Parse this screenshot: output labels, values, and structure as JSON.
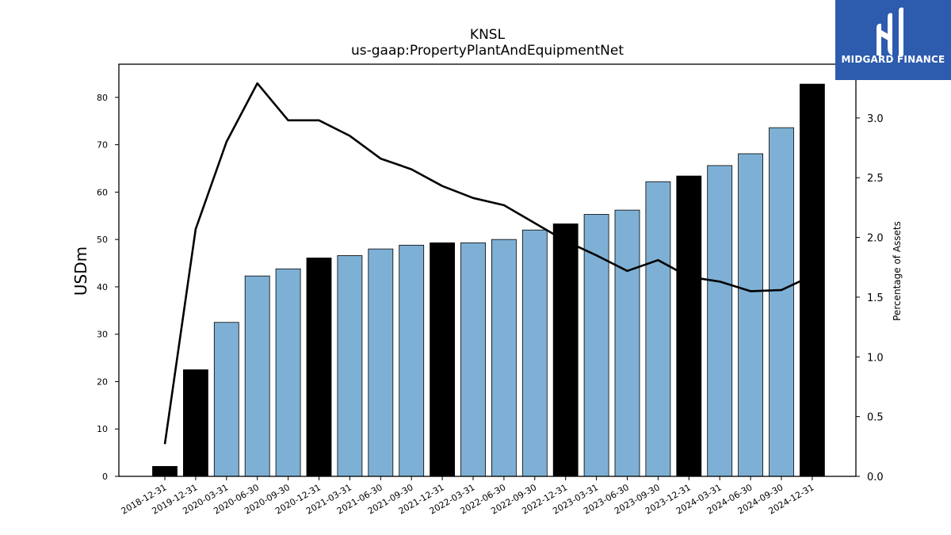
{
  "chart_data": {
    "type": "bar",
    "title": "KNSL",
    "subtitle": "us-gaap:PropertyPlantAndEquipmentNet",
    "ylabel": "USDm",
    "y2label": "Percentage of Assets",
    "ylim": [
      0,
      87
    ],
    "y2lim": [
      0,
      3.45
    ],
    "yticks": [
      0,
      10,
      20,
      30,
      40,
      50,
      60,
      70,
      80
    ],
    "y2ticks": [
      "0.0",
      "0.5",
      "1.0",
      "1.5",
      "2.0",
      "2.5",
      "3.0"
    ],
    "categories": [
      "2018-12-31",
      "2019-12-31",
      "2020-03-31",
      "2020-06-30",
      "2020-09-30",
      "2020-12-31",
      "2021-03-31",
      "2021-06-30",
      "2021-09-30",
      "2021-12-31",
      "2022-03-31",
      "2022-06-30",
      "2022-09-30",
      "2022-12-31",
      "2023-03-31",
      "2023-06-30",
      "2023-09-30",
      "2023-12-31",
      "2024-03-31",
      "2024-06-30",
      "2024-09-30",
      "2024-12-31"
    ],
    "series": [
      {
        "values": [
          2.1,
          22.5,
          32.5,
          42.3,
          43.8,
          46.1,
          46.6,
          48.0,
          48.8,
          49.3,
          49.3,
          50.0,
          52.0,
          53.3,
          55.3,
          56.2,
          62.2,
          63.4,
          65.6,
          68.1,
          73.6,
          82.8
        ],
        "year_end_color": "#000000",
        "quarter_color": "#7eb0d5"
      },
      {
        "axis": "right",
        "values": [
          0.27,
          2.07,
          2.8,
          3.29,
          2.98,
          2.98,
          2.85,
          2.66,
          2.57,
          2.43,
          2.33,
          2.27,
          2.12,
          1.97,
          1.85,
          1.72,
          1.81,
          1.67,
          1.63,
          1.55,
          1.56,
          1.68
        ]
      }
    ],
    "year_end_categories": [
      "2018-12-31",
      "2019-12-31",
      "2020-12-31",
      "2021-12-31",
      "2022-12-31",
      "2023-12-31",
      "2024-12-31"
    ]
  },
  "logo": {
    "text": "MIDGARD FINANCE",
    "bg": "#2d5bad"
  }
}
